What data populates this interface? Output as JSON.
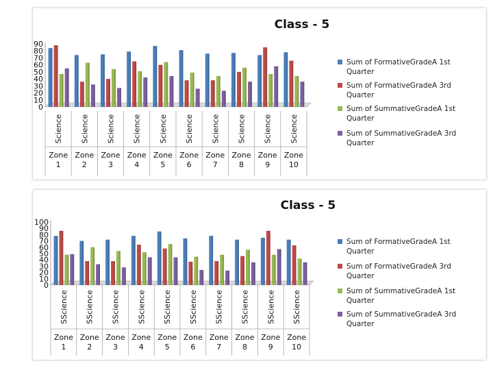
{
  "chart_data": [
    {
      "type": "bar",
      "title": "Class - 5",
      "categories": [
        "Science",
        "Science",
        "Science",
        "Science",
        "Science",
        "Science",
        "Science",
        "Science",
        "Science",
        "Science"
      ],
      "groups": [
        "Zone 1",
        "Zone 2",
        "Zone 3",
        "Zone 4",
        "Zone 5",
        "Zone 6",
        "Zone 7",
        "Zone 8",
        "Zone 9",
        "Zone 10"
      ],
      "ylim": [
        0,
        90
      ],
      "yticks": [
        0,
        10,
        20,
        30,
        40,
        50,
        60,
        70,
        80,
        90
      ],
      "series": [
        {
          "name": "Sum of FormativeGradeA 1st Quarter",
          "color": "#4a7ebb",
          "values": [
            84,
            74,
            75,
            79,
            87,
            81,
            76,
            77,
            74,
            78
          ]
        },
        {
          "name": "Sum of FormativeGradeA 3rd Quarter",
          "color": "#be4b48",
          "values": [
            88,
            36,
            40,
            65,
            60,
            38,
            38,
            50,
            85,
            66
          ]
        },
        {
          "name": "Sum of SummativeGradeA 1st Quarter",
          "color": "#98b954",
          "values": [
            47,
            63,
            54,
            51,
            64,
            49,
            44,
            56,
            47,
            44
          ]
        },
        {
          "name": "Sum of SummativeGradeA 3rd Quarter",
          "color": "#7d60a0",
          "values": [
            55,
            32,
            27,
            42,
            44,
            26,
            23,
            36,
            58,
            36
          ]
        }
      ]
    },
    {
      "type": "bar",
      "title": "Class - 5",
      "categories": [
        "SScience",
        "SScience",
        "SScience",
        "SScience",
        "SScience",
        "SScience",
        "SScience",
        "SScience",
        "SScience",
        "SScience"
      ],
      "groups": [
        "Zone 1",
        "Zone 2",
        "Zone 3",
        "Zone 4",
        "Zone 5",
        "Zone 6",
        "Zone 7",
        "Zone 8",
        "Zone 9",
        "Zone 10"
      ],
      "ylim": [
        0,
        100
      ],
      "yticks": [
        0,
        10,
        20,
        30,
        40,
        50,
        60,
        70,
        80,
        90,
        100
      ],
      "series": [
        {
          "name": "Sum of FormativeGradeA 1st Quarter",
          "color": "#4a7ebb",
          "values": [
            78,
            70,
            72,
            78,
            85,
            74,
            78,
            72,
            75,
            72
          ]
        },
        {
          "name": "Sum of FormativeGradeA 3rd Quarter",
          "color": "#be4b48",
          "values": [
            86,
            38,
            38,
            64,
            58,
            37,
            38,
            46,
            86,
            63
          ]
        },
        {
          "name": "Sum of SummativeGradeA 1st Quarter",
          "color": "#98b954",
          "values": [
            48,
            60,
            54,
            52,
            65,
            45,
            48,
            56,
            48,
            42
          ]
        },
        {
          "name": "Sum of SummativeGradeA 3rd Quarter",
          "color": "#7d60a0",
          "values": [
            49,
            33,
            28,
            44,
            44,
            24,
            23,
            36,
            57,
            36
          ]
        }
      ]
    }
  ]
}
